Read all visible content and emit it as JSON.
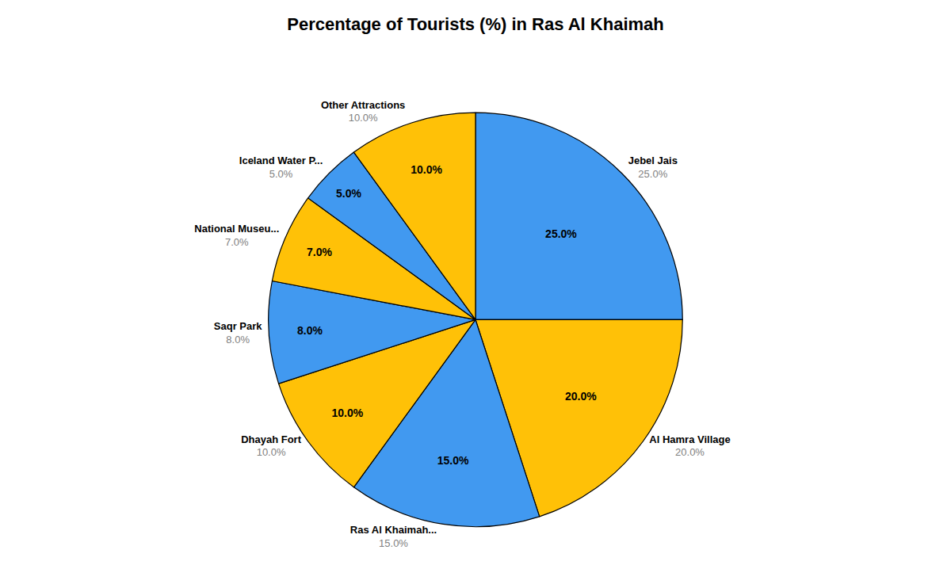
{
  "chart_data": {
    "type": "pie",
    "title": "Percentage of Tourists (%) in Ras Al Khaimah",
    "categories": [
      "Jebel Jais",
      "Al Hamra Village",
      "Ras Al Khaimah...",
      "Dhayah Fort",
      "Saqr Park",
      "National Museu...",
      "Iceland Water P...",
      "Other Attractions"
    ],
    "values": [
      25.0,
      20.0,
      15.0,
      10.0,
      8.0,
      7.0,
      5.0,
      10.0
    ],
    "value_labels": [
      "25.0%",
      "20.0%",
      "15.0%",
      "10.0%",
      "8.0%",
      "7.0%",
      "5.0%",
      "10.0%"
    ],
    "colors": [
      "#4199f0",
      "#FFC107",
      "#4199f0",
      "#FFC107",
      "#4199f0",
      "#FFC107",
      "#4199f0",
      "#FFC107"
    ],
    "data_labels": true
  }
}
